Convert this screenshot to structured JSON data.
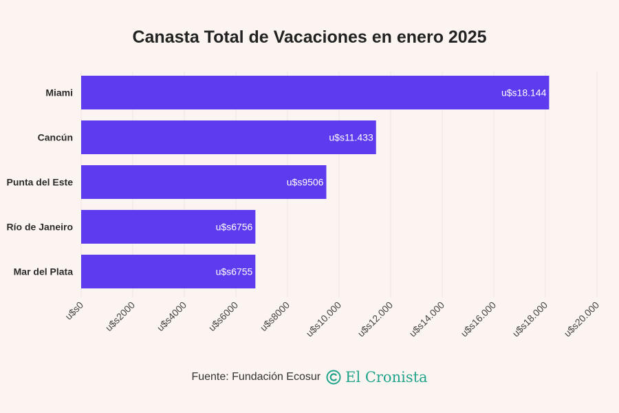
{
  "title": "Canasta Total de Vacaciones en enero 2025",
  "footer": {
    "source": "Fuente: Fundación Ecosur",
    "brand": "El Cronista",
    "brand_icon": "copyright-c-logo-icon"
  },
  "colors": {
    "bar": "#5e3bef",
    "background": "#fcf4f0",
    "grid": "#ece6e3",
    "brand": "#1fa38a"
  },
  "chart_data": {
    "type": "bar",
    "orientation": "horizontal",
    "title": "Canasta Total de Vacaciones en enero 2025",
    "categories": [
      "Miami",
      "Cancún",
      "Punta del Este",
      "Río de Janeiro",
      "Mar del Plata"
    ],
    "values": [
      18144,
      11433,
      9506,
      6756,
      6755
    ],
    "value_labels": [
      "u$s18.144",
      "u$s11.433",
      "u$s9506",
      "u$s6756",
      "u$s6755"
    ],
    "xlim": [
      0,
      20000
    ],
    "xticks": [
      0,
      2000,
      4000,
      6000,
      8000,
      10000,
      12000,
      14000,
      16000,
      18000,
      20000
    ],
    "xtick_labels": [
      "u$s0",
      "u$s2000",
      "u$s4000",
      "u$s6000",
      "u$s8000",
      "u$s10.000",
      "u$s12.000",
      "u$s14.000",
      "u$s16.000",
      "u$s18.000",
      "u$s20.000"
    ],
    "xlabel": "",
    "ylabel": "",
    "grid": true,
    "legend": "none"
  }
}
